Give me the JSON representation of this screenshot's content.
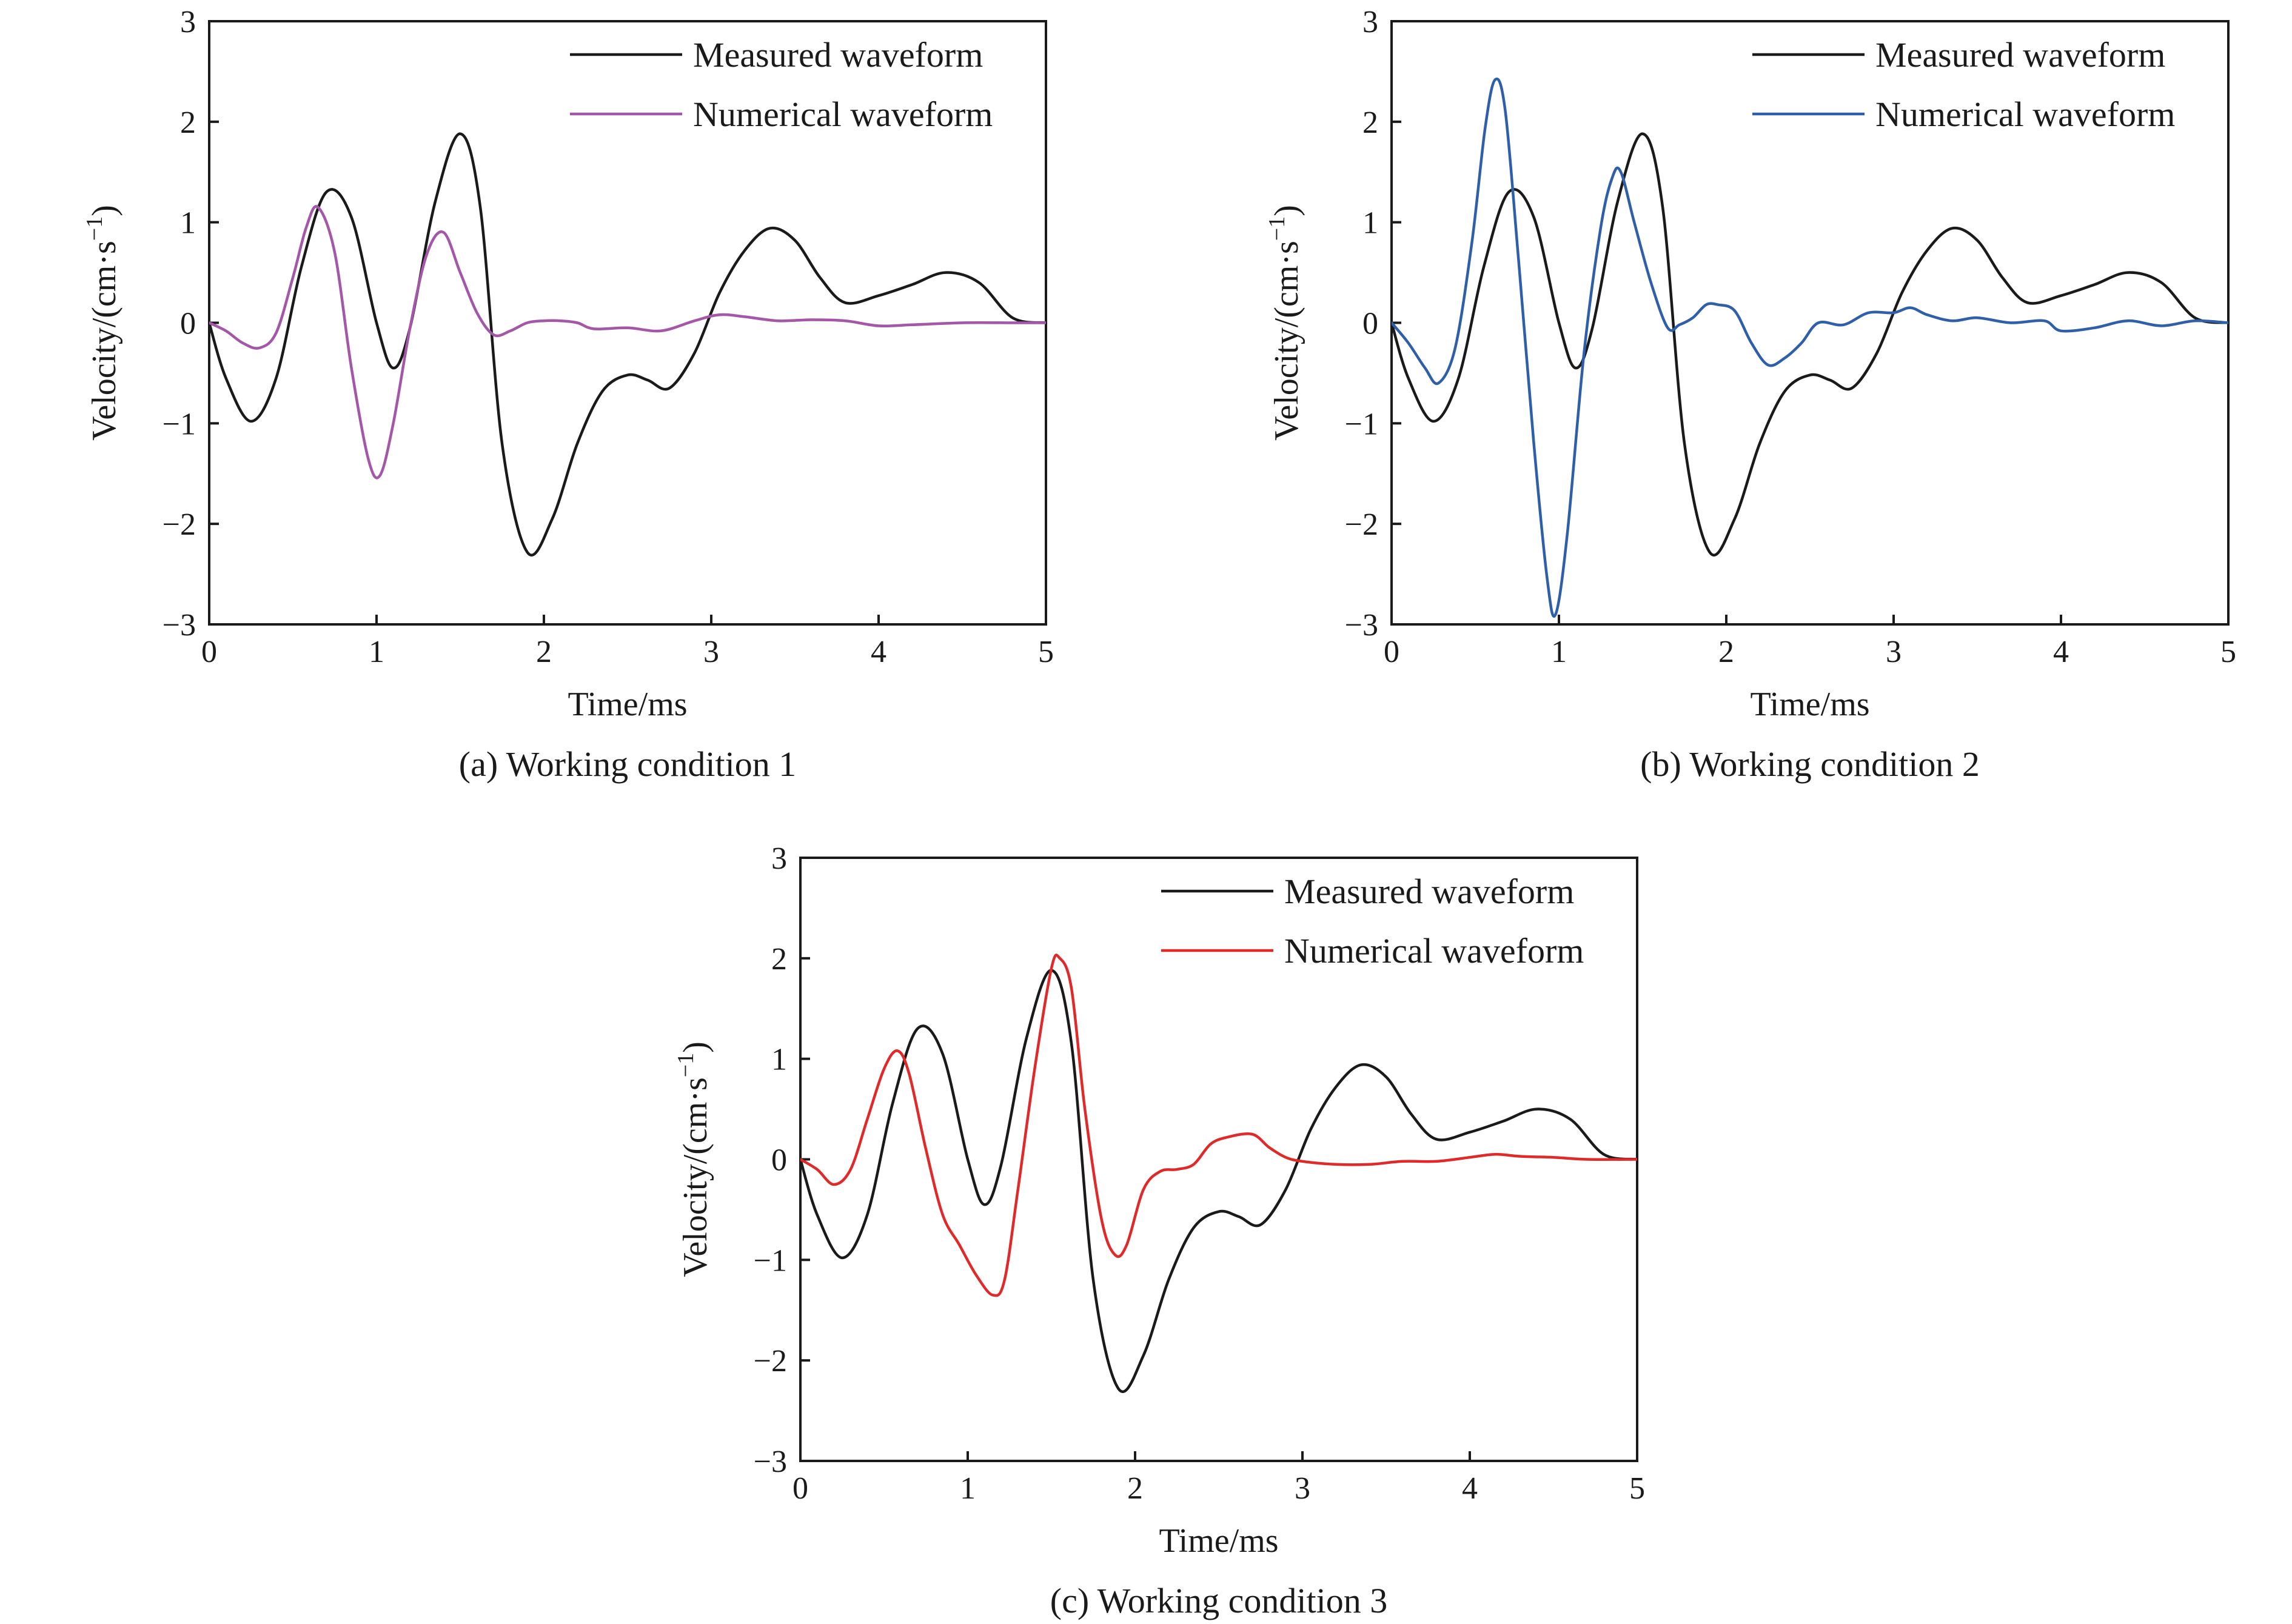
{
  "chart_data": [
    {
      "type": "line",
      "caption": "(a) Working condition 1",
      "xlabel": "Time/ms",
      "ylabel_main": "Velocity/(cm·s",
      "ylabel_sup": "−1",
      "ylabel_close": ")",
      "xlim": [
        0,
        5
      ],
      "ylim": [
        -3,
        3
      ],
      "xticks": [
        0,
        1,
        2,
        3,
        4,
        5
      ],
      "yticks": [
        -3,
        -2,
        -1,
        0,
        1,
        2,
        3
      ],
      "xtick_labels": [
        "0",
        "1",
        "2",
        "3",
        "4",
        "5"
      ],
      "ytick_labels": [
        "−3",
        "−2",
        "−1",
        "0",
        "1",
        "2",
        "3"
      ],
      "grid": false,
      "legend_position": "top-right",
      "series": [
        {
          "name": "Measured waveform",
          "color": "#1a1a1a",
          "x": [
            0,
            0.1,
            0.25,
            0.4,
            0.55,
            0.7,
            0.85,
            1.0,
            1.1,
            1.2,
            1.35,
            1.5,
            1.62,
            1.75,
            1.9,
            2.05,
            2.2,
            2.35,
            2.5,
            2.62,
            2.75,
            2.9,
            3.05,
            3.2,
            3.35,
            3.5,
            3.65,
            3.8,
            4.0,
            4.2,
            4.4,
            4.6,
            4.8,
            5.0
          ],
          "y": [
            0,
            -0.55,
            -0.98,
            -0.55,
            0.55,
            1.3,
            1.05,
            0.0,
            -0.45,
            -0.05,
            1.2,
            1.88,
            1.15,
            -1.2,
            -2.28,
            -1.95,
            -1.2,
            -0.68,
            -0.52,
            -0.57,
            -0.65,
            -0.3,
            0.3,
            0.72,
            0.94,
            0.82,
            0.45,
            0.2,
            0.27,
            0.38,
            0.5,
            0.4,
            0.05,
            0
          ]
        },
        {
          "name": "Numerical waveform",
          "color": "#a456a8",
          "x": [
            0,
            0.1,
            0.2,
            0.3,
            0.4,
            0.5,
            0.58,
            0.65,
            0.75,
            0.85,
            0.95,
            1.02,
            1.1,
            1.2,
            1.3,
            1.4,
            1.5,
            1.6,
            1.7,
            1.8,
            1.9,
            2.0,
            2.1,
            2.2,
            2.3,
            2.5,
            2.7,
            2.9,
            3.05,
            3.2,
            3.4,
            3.6,
            3.8,
            4.0,
            4.2,
            4.5,
            4.8,
            5.0
          ],
          "y": [
            0,
            -0.08,
            -0.2,
            -0.25,
            -0.1,
            0.45,
            0.95,
            1.15,
            0.7,
            -0.45,
            -1.35,
            -1.52,
            -1.0,
            -0.05,
            0.68,
            0.9,
            0.5,
            0.1,
            -0.12,
            -0.08,
            0.0,
            0.02,
            0.02,
            0.0,
            -0.06,
            -0.05,
            -0.08,
            0.02,
            0.08,
            0.06,
            0.02,
            0.03,
            0.02,
            -0.03,
            -0.02,
            0.0,
            0.0,
            0
          ]
        }
      ]
    },
    {
      "type": "line",
      "caption": "(b) Working condition 2",
      "xlabel": "Time/ms",
      "ylabel_main": "Velocity/(cm·s",
      "ylabel_sup": "−1",
      "ylabel_close": ")",
      "xlim": [
        0,
        5
      ],
      "ylim": [
        -3,
        3
      ],
      "xticks": [
        0,
        1,
        2,
        3,
        4,
        5
      ],
      "yticks": [
        -3,
        -2,
        -1,
        0,
        1,
        2,
        3
      ],
      "xtick_labels": [
        "0",
        "1",
        "2",
        "3",
        "4",
        "5"
      ],
      "ytick_labels": [
        "−3",
        "−2",
        "−1",
        "0",
        "1",
        "2",
        "3"
      ],
      "grid": false,
      "legend_position": "top-right",
      "series": [
        {
          "name": "Measured waveform",
          "color": "#1a1a1a",
          "x": [
            0,
            0.1,
            0.25,
            0.4,
            0.55,
            0.7,
            0.85,
            1.0,
            1.1,
            1.2,
            1.35,
            1.5,
            1.62,
            1.75,
            1.9,
            2.05,
            2.2,
            2.35,
            2.5,
            2.62,
            2.75,
            2.9,
            3.05,
            3.2,
            3.35,
            3.5,
            3.65,
            3.8,
            4.0,
            4.2,
            4.4,
            4.6,
            4.8,
            5.0
          ],
          "y": [
            0,
            -0.55,
            -0.98,
            -0.55,
            0.55,
            1.3,
            1.05,
            0.0,
            -0.45,
            -0.05,
            1.2,
            1.88,
            1.15,
            -1.2,
            -2.28,
            -1.95,
            -1.2,
            -0.68,
            -0.52,
            -0.57,
            -0.65,
            -0.3,
            0.3,
            0.72,
            0.94,
            0.82,
            0.45,
            0.2,
            0.27,
            0.38,
            0.5,
            0.4,
            0.05,
            0
          ]
        },
        {
          "name": "Numerical waveform",
          "color": "#2e5fa8",
          "x": [
            0,
            0.1,
            0.2,
            0.28,
            0.38,
            0.48,
            0.56,
            0.62,
            0.68,
            0.76,
            0.85,
            0.93,
            0.98,
            1.05,
            1.15,
            1.25,
            1.32,
            1.37,
            1.45,
            1.55,
            1.65,
            1.72,
            1.8,
            1.88,
            1.95,
            2.05,
            2.15,
            2.25,
            2.35,
            2.45,
            2.55,
            2.7,
            2.85,
            3.0,
            3.1,
            3.2,
            3.35,
            3.5,
            3.7,
            3.9,
            4.0,
            4.2,
            4.4,
            4.6,
            4.8,
            5.0
          ],
          "y": [
            0,
            -0.2,
            -0.45,
            -0.6,
            -0.25,
            0.8,
            1.95,
            2.42,
            2.1,
            0.6,
            -1.2,
            -2.55,
            -2.9,
            -2.1,
            -0.3,
            0.95,
            1.45,
            1.5,
            1.0,
            0.4,
            -0.05,
            -0.02,
            0.05,
            0.18,
            0.18,
            0.12,
            -0.2,
            -0.42,
            -0.35,
            -0.2,
            0.0,
            -0.02,
            0.1,
            0.1,
            0.15,
            0.08,
            0.02,
            0.05,
            0.0,
            0.02,
            -0.08,
            -0.05,
            0.02,
            -0.03,
            0.02,
            0
          ]
        }
      ]
    },
    {
      "type": "line",
      "caption": "(c) Working condition 3",
      "xlabel": "Time/ms",
      "ylabel_main": "Velocity/(cm·s",
      "ylabel_sup": "−1",
      "ylabel_close": ")",
      "xlim": [
        0,
        5
      ],
      "ylim": [
        -3,
        3
      ],
      "xticks": [
        0,
        1,
        2,
        3,
        4,
        5
      ],
      "yticks": [
        -3,
        -2,
        -1,
        0,
        1,
        2,
        3
      ],
      "xtick_labels": [
        "0",
        "1",
        "2",
        "3",
        "4",
        "5"
      ],
      "ytick_labels": [
        "−3",
        "−2",
        "−1",
        "0",
        "1",
        "2",
        "3"
      ],
      "grid": false,
      "legend_position": "top-right",
      "series": [
        {
          "name": "Measured waveform",
          "color": "#1a1a1a",
          "x": [
            0,
            0.1,
            0.25,
            0.4,
            0.55,
            0.7,
            0.85,
            1.0,
            1.1,
            1.2,
            1.35,
            1.5,
            1.62,
            1.75,
            1.9,
            2.05,
            2.2,
            2.35,
            2.5,
            2.62,
            2.75,
            2.9,
            3.05,
            3.2,
            3.35,
            3.5,
            3.65,
            3.8,
            4.0,
            4.2,
            4.4,
            4.6,
            4.8,
            5.0
          ],
          "y": [
            0,
            -0.55,
            -0.98,
            -0.55,
            0.55,
            1.3,
            1.05,
            0.0,
            -0.45,
            -0.05,
            1.2,
            1.88,
            1.15,
            -1.2,
            -2.28,
            -1.95,
            -1.2,
            -0.68,
            -0.52,
            -0.57,
            -0.65,
            -0.3,
            0.3,
            0.72,
            0.94,
            0.82,
            0.45,
            0.2,
            0.27,
            0.38,
            0.5,
            0.4,
            0.05,
            0
          ]
        },
        {
          "name": "Numerical waveform",
          "color": "#e02a2a",
          "x": [
            0,
            0.1,
            0.2,
            0.3,
            0.4,
            0.5,
            0.58,
            0.65,
            0.75,
            0.85,
            0.95,
            1.05,
            1.15,
            1.22,
            1.3,
            1.4,
            1.5,
            1.55,
            1.62,
            1.7,
            1.8,
            1.88,
            1.95,
            2.05,
            2.15,
            2.25,
            2.35,
            2.45,
            2.55,
            2.7,
            2.8,
            2.9,
            3.0,
            3.2,
            3.4,
            3.6,
            3.8,
            4.0,
            4.15,
            4.3,
            4.5,
            4.7,
            5.0
          ],
          "y": [
            0,
            -0.1,
            -0.25,
            -0.1,
            0.4,
            0.9,
            1.08,
            0.85,
            0.1,
            -0.55,
            -0.85,
            -1.15,
            -1.35,
            -1.2,
            -0.3,
            0.9,
            1.9,
            2.0,
            1.7,
            0.5,
            -0.6,
            -0.95,
            -0.85,
            -0.3,
            -0.12,
            -0.1,
            -0.05,
            0.15,
            0.22,
            0.25,
            0.12,
            0.02,
            -0.02,
            -0.05,
            -0.05,
            -0.02,
            -0.02,
            0.02,
            0.05,
            0.03,
            0.02,
            0.0,
            0
          ]
        }
      ]
    }
  ]
}
